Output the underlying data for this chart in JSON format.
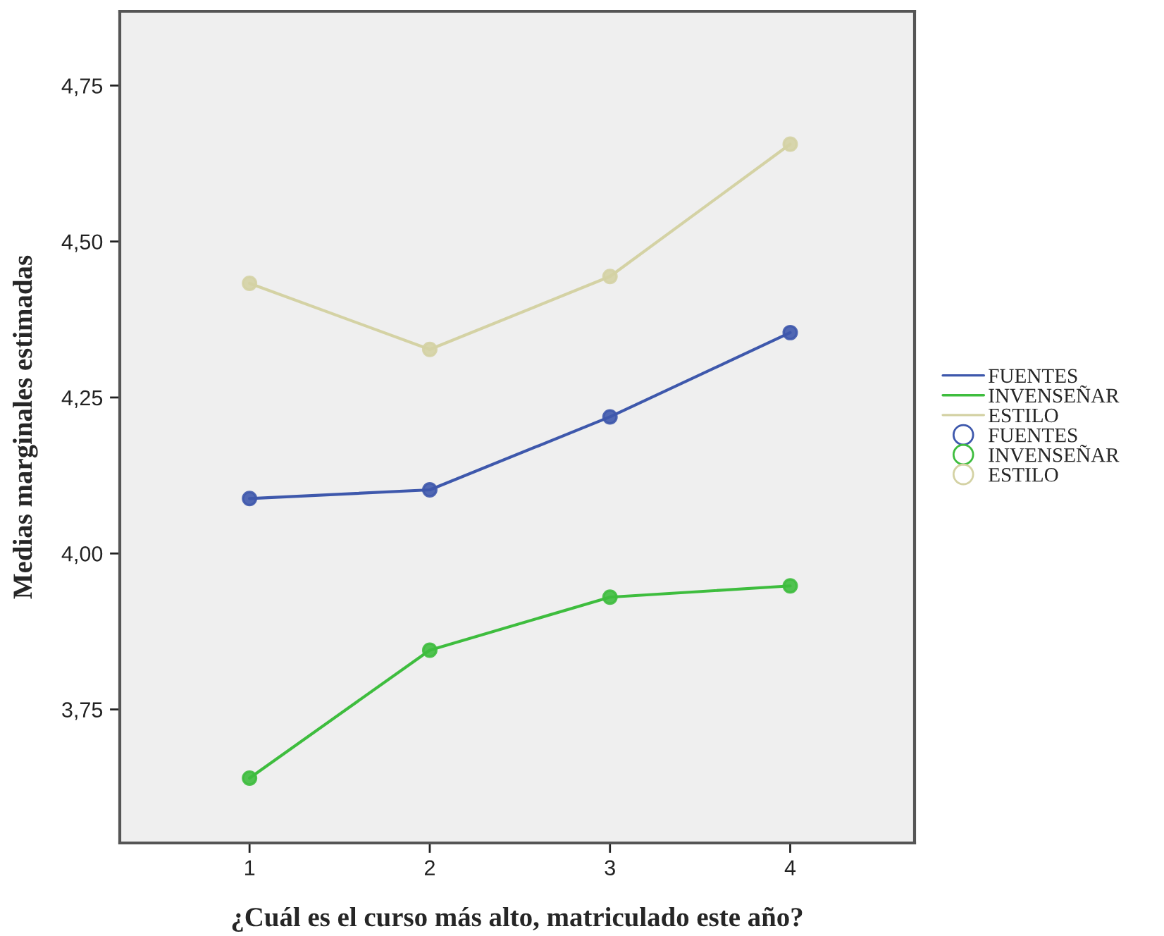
{
  "chart_data": {
    "type": "line",
    "xlabel": "¿Cuál es el curso más alto, matriculado este año?",
    "ylabel": "Medias marginales estimadas",
    "x": [
      1,
      2,
      3,
      4
    ],
    "series": [
      {
        "name": "FUENTES",
        "color": "#3e58ac",
        "values": [
          4.088,
          4.102,
          4.219,
          4.354
        ]
      },
      {
        "name": "INVENSEÑAR",
        "color": "#3ebd3e",
        "values": [
          3.64,
          3.845,
          3.93,
          3.948
        ]
      },
      {
        "name": "ESTILO",
        "color": "#d4d2a4",
        "values": [
          4.433,
          4.327,
          4.444,
          4.656
        ]
      }
    ],
    "xlim": [
      0.28,
      4.69
    ],
    "xticks": [
      1,
      2,
      3,
      4
    ],
    "ylim": [
      3.536,
      4.869
    ],
    "yticks": [
      {
        "value": 3.75,
        "label": "3,75"
      },
      {
        "value": 4.0,
        "label": "4,00"
      },
      {
        "value": 4.25,
        "label": "4,25"
      },
      {
        "value": 4.5,
        "label": "4,50"
      },
      {
        "value": 4.75,
        "label": "4,75"
      }
    ],
    "marker": "circle",
    "line_style": "solid",
    "grid": false,
    "legend": "right"
  }
}
